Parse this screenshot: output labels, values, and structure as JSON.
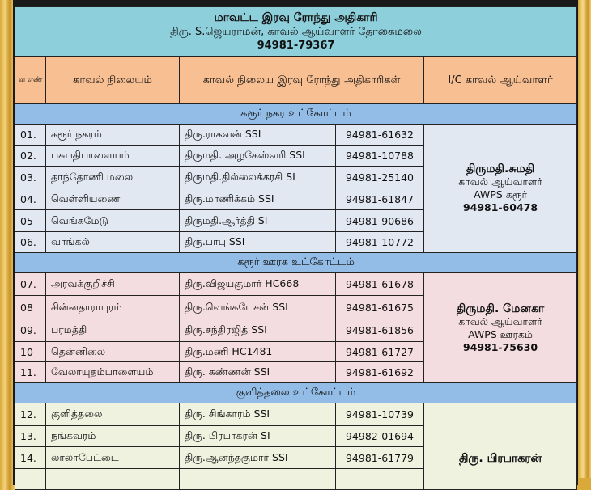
{
  "title": {
    "heading": "மாவட்ட இரவு ரோந்து அதிகாரி",
    "officer": "திரு. S.ஜெயராமன், காவல் ஆய்வாளர் தோகைமலை",
    "phone": "94981-79367"
  },
  "columns": {
    "sno": "வ எண்",
    "station": "காவல் நிலையம்",
    "officer": "காவல் நிலைய இரவு ரோந்து அதிகாரிகள்",
    "ic": "I/C காவல் ஆய்வாளர்"
  },
  "colors": {
    "title_bg": "#8ecfdc",
    "header_bg": "#f8bf92",
    "section_bg": "#93bde6",
    "group1_bg": "#e1e8f2",
    "group2_bg": "#f4dde1",
    "group3_bg": "#eef2df"
  },
  "groups": [
    {
      "section": "கரூர் நகர உட்கோட்டம்",
      "ic": {
        "name": "திருமதி.சுமதி",
        "designation": "காவல் ஆய்வாளர்",
        "unit": "AWPS கரூர்",
        "phone": "94981-60478"
      },
      "rows": [
        {
          "sno": "01.",
          "station": "கரூர் நகரம்",
          "officer": "திரு.ராகவன் SSI",
          "phone": "94981-61632"
        },
        {
          "sno": "02.",
          "station": "பசுபதிபாளையம்",
          "officer": "திருமதி. அழகேஸ்வரி SSI",
          "phone": "94981-10788"
        },
        {
          "sno": "03.",
          "station": "தாந்தோணி மலை",
          "officer": "திருமதி.தில்லைக்கரசி SI",
          "phone": "94981-25140"
        },
        {
          "sno": "04.",
          "station": "வெள்ளியணை",
          "officer": "திரு.மாணிக்கம் SSI",
          "phone": "94981-61847"
        },
        {
          "sno": "05",
          "station": "வெங்கமேடு",
          "officer": "திருமதி.ஆர்த்தி SI",
          "phone": "94981-90686"
        },
        {
          "sno": "06.",
          "station": "வாங்கல்",
          "officer": "திரு.பாபு SSI",
          "phone": "94981-10772"
        }
      ]
    },
    {
      "section": "கரூர் ஊரக உட்கோட்டம்",
      "ic": {
        "name": "திருமதி. மேனகா",
        "designation": "காவல் ஆய்வாளர்",
        "unit": "AWPS ஊரகம்",
        "phone": "94981-75630"
      },
      "rows": [
        {
          "sno": "07.",
          "station": "அரவக்குறிச்சி",
          "officer": "திரு.விஜயகுமார் HC668",
          "phone": "94981-61678"
        },
        {
          "sno": "08",
          "station": "சின்னதாராபுரம்",
          "officer": "திரு.வெங்கடேசன் SSI",
          "phone": "94981-61675"
        },
        {
          "sno": "09.",
          "station": "பரமத்தி",
          "officer": "திரு.சந்திரஜித் SSI",
          "phone": "94981-61856"
        },
        {
          "sno": "10",
          "station": "தென்னிலை",
          "officer": "திரு.மணி HC1481",
          "phone": "94981-61727"
        },
        {
          "sno": "11.",
          "station": "வேலாயுதம்பாளையம்",
          "officer": "திரு. கண்ணன் SSI",
          "phone": "94981-61692"
        }
      ]
    },
    {
      "section": "குளித்தலை உட்கோட்டம்",
      "ic": {
        "name": "திரு. பிரபாகரன்"
      },
      "rows": [
        {
          "sno": "12.",
          "station": "குளித்தலை",
          "officer": "திரு. சிங்காரம் SSI",
          "phone": "94981-10739"
        },
        {
          "sno": "13.",
          "station": "நங்கவரம்",
          "officer": "திரு. பிரபாகரன் SI",
          "phone": "94982-01694"
        },
        {
          "sno": "14.",
          "station": "லாலாபேட்டை",
          "officer": "திரு.ஆனந்தகுமார் SSI",
          "phone": "94981-61779"
        },
        {
          "sno": "",
          "station": "",
          "officer": "",
          "phone": ""
        }
      ]
    }
  ]
}
